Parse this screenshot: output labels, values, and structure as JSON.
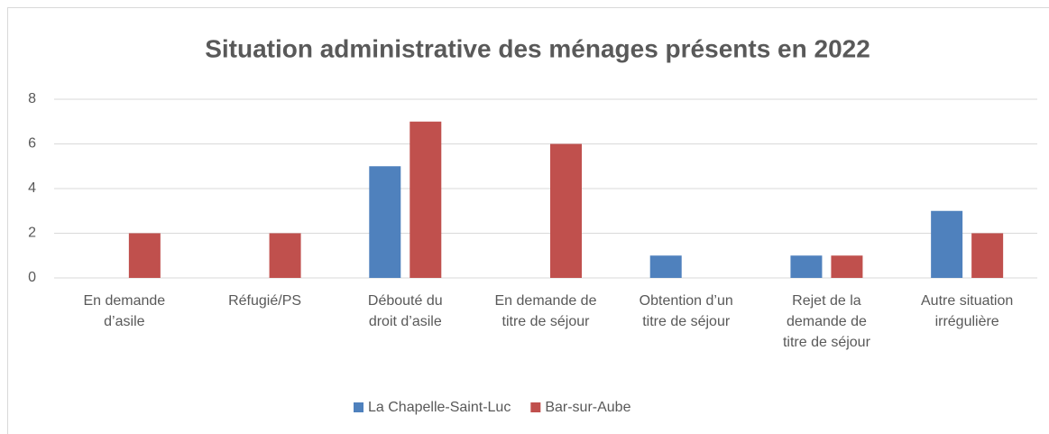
{
  "chart_data": {
    "type": "bar",
    "title": "Situation administrative des ménages présents en 2022",
    "categories": [
      "En demande\nd’asile",
      "Réfugié/PS",
      "Débouté du\ndroit d’asile",
      "En demande de\ntitre de séjour",
      "Obtention d’un\ntitre de séjour",
      "Rejet de la\ndemande de\ntitre de séjour",
      "Autre situation\nirrégulière"
    ],
    "series": [
      {
        "name": "La Chapelle-Saint-Luc",
        "color": "#4f81bd",
        "values": [
          0,
          0,
          5,
          0,
          1,
          1,
          3
        ]
      },
      {
        "name": "Bar-sur-Aube",
        "color": "#c0504d",
        "values": [
          2,
          2,
          7,
          6,
          0,
          1,
          2
        ]
      }
    ],
    "ylim": [
      0,
      8
    ],
    "yticks": [
      0,
      2,
      4,
      6,
      8
    ],
    "grid": true,
    "legend": "bottom"
  }
}
